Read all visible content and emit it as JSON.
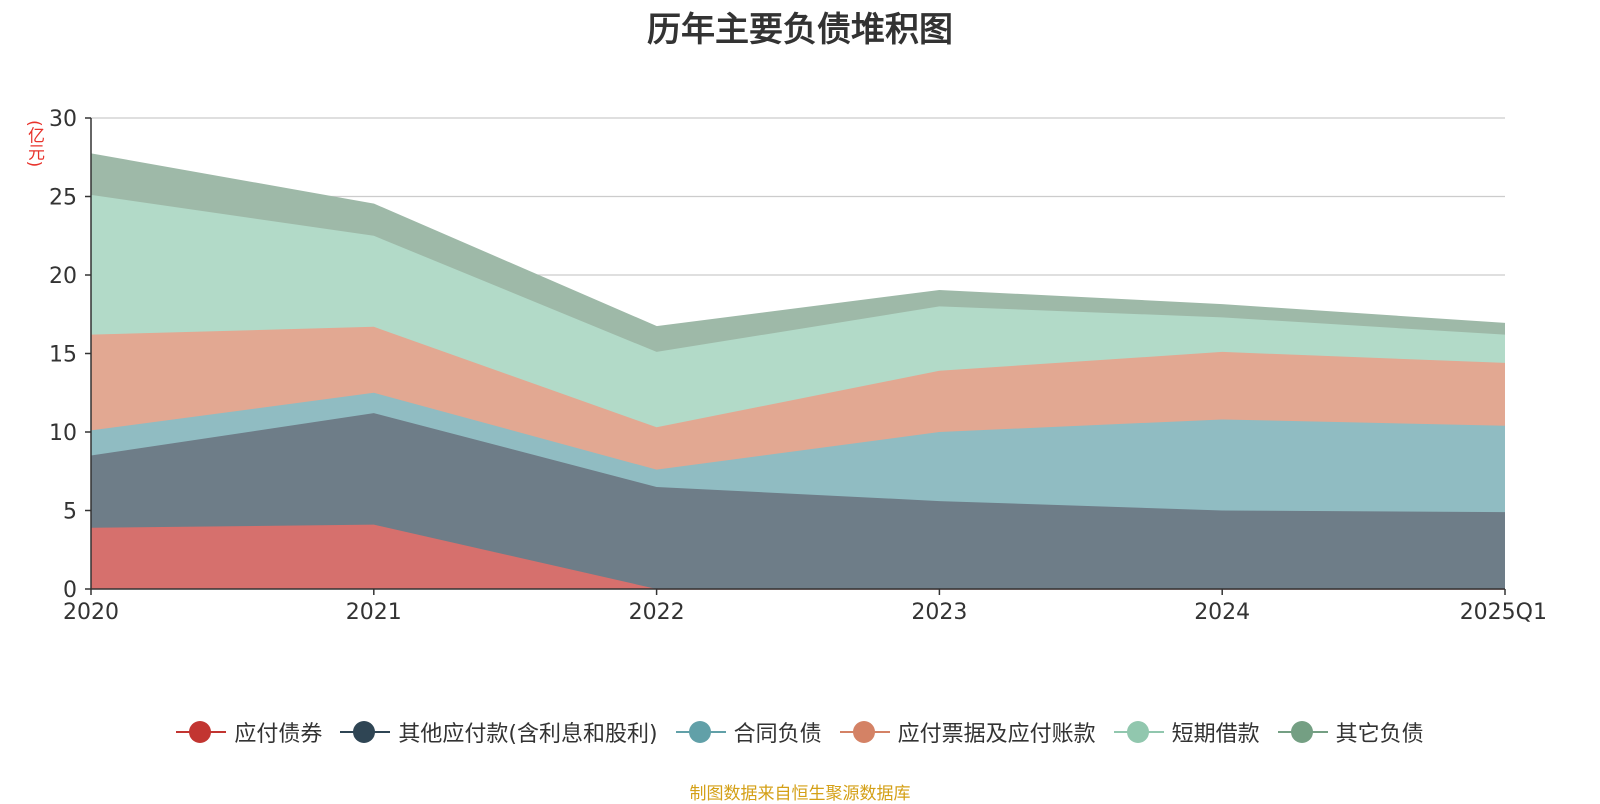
{
  "chart_data": {
    "type": "area",
    "stacked": true,
    "title": "历年主要负债堆积图",
    "unit": "(亿元)",
    "categories": [
      "2020",
      "2021",
      "2022",
      "2023",
      "2024",
      "2025Q1"
    ],
    "ylim": [
      0,
      30
    ],
    "yticks": [
      0,
      5,
      10,
      15,
      20,
      25,
      30
    ],
    "grid": true,
    "legend_position": "bottom",
    "series": [
      {
        "name": "应付债券",
        "color": "#c23531",
        "fill": "#d6706d",
        "values": [
          3.9,
          4.1,
          0.0,
          0.0,
          0.0,
          0.0
        ]
      },
      {
        "name": "其他应付款(含利息和股利)",
        "color": "#2f4554",
        "fill": "#6e7d88",
        "values": [
          4.6,
          7.1,
          6.5,
          5.6,
          5.0,
          4.9
        ]
      },
      {
        "name": "合同负债",
        "color": "#61a0a8",
        "fill": "#90bcc2",
        "values": [
          1.6,
          1.3,
          1.1,
          4.4,
          5.8,
          5.5
        ]
      },
      {
        "name": "应付票据及应付账款",
        "color": "#d48265",
        "fill": "#e2a892",
        "values": [
          6.1,
          4.2,
          2.7,
          3.9,
          4.3,
          4.0
        ]
      },
      {
        "name": "短期借款",
        "color": "#91c7ae",
        "fill": "#b2dac8",
        "values": [
          8.9,
          5.8,
          4.8,
          4.1,
          2.2,
          1.8
        ]
      },
      {
        "name": "其它负债",
        "color": "#749f83",
        "fill": "#9eb9a8",
        "values": [
          2.6,
          2.0,
          1.6,
          1.0,
          0.8,
          0.7
        ]
      }
    ]
  },
  "source": "制图数据来自恒生聚源数据库"
}
